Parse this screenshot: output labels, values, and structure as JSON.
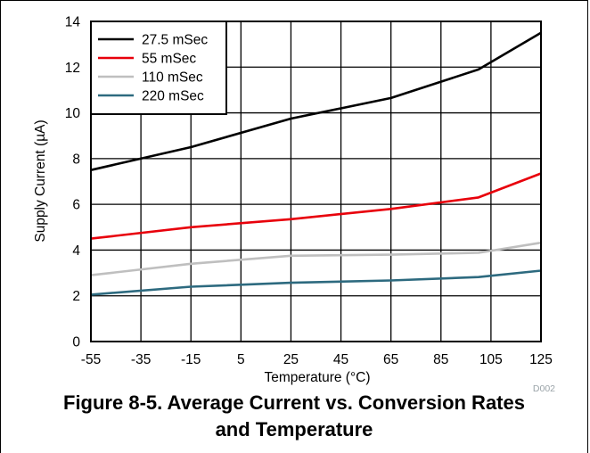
{
  "caption": {
    "line1": "Figure 8-5. Average Current vs. Conversion Rates",
    "line2": "and Temperature"
  },
  "figure_id": "D002",
  "chart_data": {
    "type": "line",
    "xlabel": "Temperature (°C)",
    "ylabel": "Supply Current (µA)",
    "xlim": [
      -55,
      125
    ],
    "ylim": [
      0,
      14
    ],
    "x_ticks": [
      -55,
      -35,
      -15,
      5,
      25,
      45,
      65,
      85,
      105,
      125
    ],
    "y_ticks": [
      0,
      2,
      4,
      6,
      8,
      10,
      12,
      14
    ],
    "grid": true,
    "legend_position": "top-left",
    "series": [
      {
        "name": "27.5 mSec",
        "color": "#000000",
        "x": [
          -55,
          -15,
          25,
          65,
          100,
          125
        ],
        "y": [
          7.5,
          8.5,
          9.75,
          10.65,
          11.9,
          13.5
        ]
      },
      {
        "name": "55 mSec",
        "color": "#e8000b",
        "x": [
          -55,
          -15,
          25,
          65,
          100,
          125
        ],
        "y": [
          4.5,
          5.0,
          5.35,
          5.8,
          6.3,
          7.35
        ]
      },
      {
        "name": "110 mSec",
        "color": "#bfbfbf",
        "x": [
          -55,
          -15,
          25,
          65,
          100,
          125
        ],
        "y": [
          2.9,
          3.4,
          3.75,
          3.8,
          3.88,
          4.32
        ]
      },
      {
        "name": "220 mSec",
        "color": "#2d6a7f",
        "x": [
          -55,
          -15,
          25,
          65,
          100,
          125
        ],
        "y": [
          2.05,
          2.4,
          2.57,
          2.67,
          2.82,
          3.1
        ]
      }
    ]
  }
}
